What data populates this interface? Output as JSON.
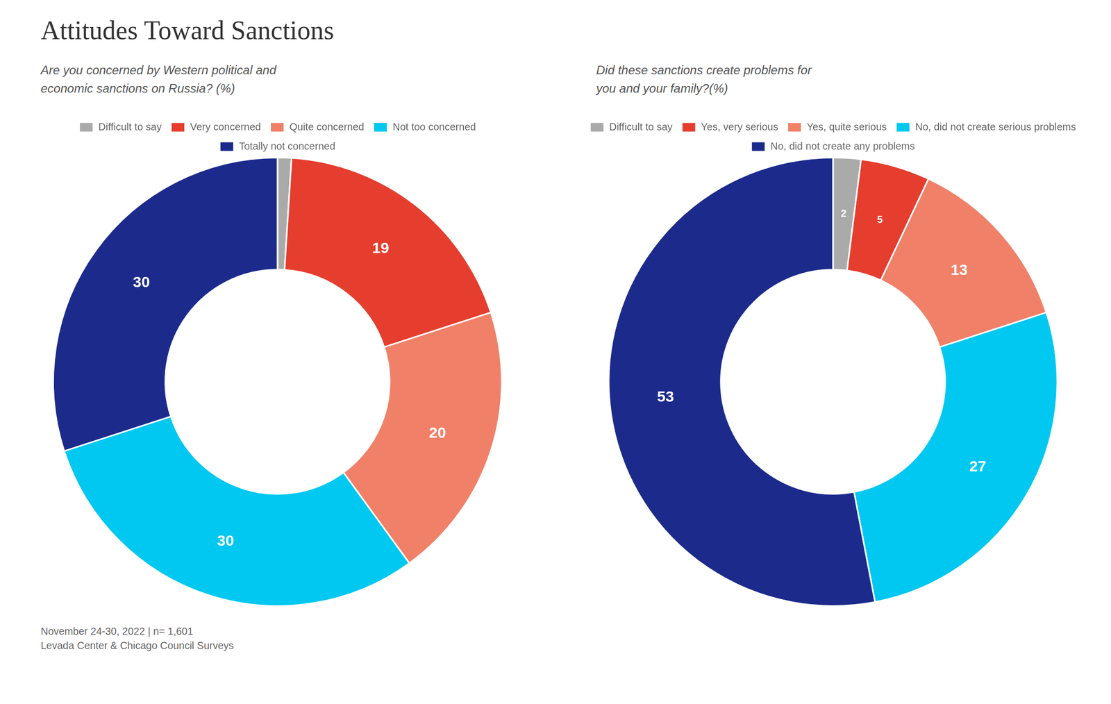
{
  "title": "Attitudes Toward Sanctions",
  "annotations": [
    "November 24-30, 2022 | n= 1,601",
    "Levada Center & Chicago Council Surveys"
  ],
  "chart_data": [
    {
      "type": "doughnut",
      "subtitle": "Are you concerned by Western political and\neconomic sanctions on Russia? (%)",
      "categories": [
        "Difficult to say",
        "Very concerned",
        "Quite concerned",
        "Not too concerned",
        "Totally not concerned"
      ],
      "values": [
        1,
        19,
        20,
        30,
        30
      ],
      "value_labels": [
        null,
        "19",
        "20",
        "30",
        "30"
      ],
      "colors": [
        "#aaaaaa",
        "#e53d2e",
        "#f08068",
        "#00c8f0",
        "#1b2a8b"
      ],
      "data_labels": true,
      "legend": "top"
    },
    {
      "type": "doughnut",
      "subtitle": "Did these sanctions create problems for\nyou and your family?(%)",
      "categories": [
        "Difficult to say",
        "Yes, very serious",
        "Yes, quite serious",
        "No, did not create serious problems",
        "No, did not create any problems"
      ],
      "values": [
        2,
        5,
        13,
        27,
        53
      ],
      "colors": [
        "#aaaaaa",
        "#e53d2e",
        "#f08068",
        "#00c8f0",
        "#1b2a8b"
      ],
      "data_labels": true,
      "legend": "top"
    }
  ]
}
